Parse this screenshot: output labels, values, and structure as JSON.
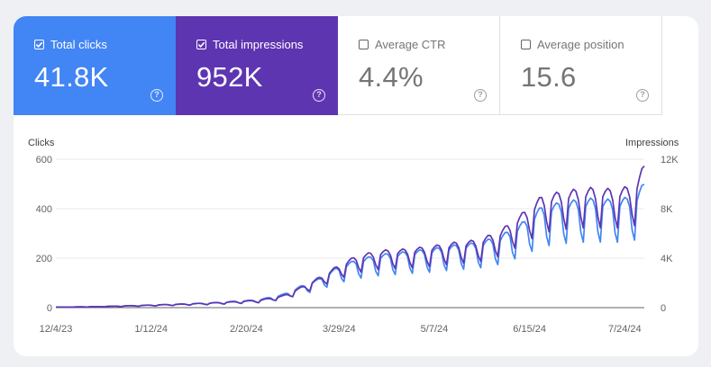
{
  "metrics": [
    {
      "label": "Total clicks",
      "value": "41.8K",
      "checked": true,
      "color": "#4285f4"
    },
    {
      "label": "Total impressions",
      "value": "952K",
      "checked": true,
      "color": "#5e35b1"
    },
    {
      "label": "Average CTR",
      "value": "4.4%",
      "checked": false,
      "color": "#ffffff"
    },
    {
      "label": "Average position",
      "value": "15.6",
      "checked": false,
      "color": "#ffffff"
    }
  ],
  "help_glyph": "?",
  "chart_data": {
    "type": "line",
    "left_axis_title": "Clicks",
    "right_axis_title": "Impressions",
    "x_tick_labels": [
      "12/4/23",
      "1/12/24",
      "2/20/24",
      "3/29/24",
      "5/7/24",
      "6/15/24",
      "7/24/24"
    ],
    "x_range": [
      "2023-12-04",
      "2024-08-01"
    ],
    "left_ticks": [
      "0",
      "200",
      "400",
      "600"
    ],
    "left_range": [
      0,
      600
    ],
    "right_ticks": [
      "0",
      "4K",
      "8K",
      "12K"
    ],
    "right_range": [
      0,
      12000
    ],
    "grid": true,
    "series": [
      {
        "name": "Clicks",
        "axis": "left",
        "color": "#4285f4",
        "points": [
          [
            "2023-12-04",
            2
          ],
          [
            "2023-12-14",
            3
          ],
          [
            "2023-12-25",
            5
          ],
          [
            "2024-01-05",
            8
          ],
          [
            "2024-01-15",
            11
          ],
          [
            "2024-01-25",
            14
          ],
          [
            "2024-02-05",
            18
          ],
          [
            "2024-02-15",
            24
          ],
          [
            "2024-02-25",
            30
          ],
          [
            "2024-03-06",
            50
          ],
          [
            "2024-03-13",
            80
          ],
          [
            "2024-03-20",
            105
          ],
          [
            "2024-03-28",
            150
          ],
          [
            "2024-04-05",
            180
          ],
          [
            "2024-04-15",
            200
          ],
          [
            "2024-04-25",
            210
          ],
          [
            "2024-05-05",
            220
          ],
          [
            "2024-05-15",
            235
          ],
          [
            "2024-05-25",
            245
          ],
          [
            "2024-06-03",
            270
          ],
          [
            "2024-06-12",
            320
          ],
          [
            "2024-06-20",
            380
          ],
          [
            "2024-06-30",
            400
          ],
          [
            "2024-07-10",
            410
          ],
          [
            "2024-07-20",
            405
          ],
          [
            "2024-07-28",
            420
          ],
          [
            "2024-08-01",
            470
          ]
        ],
        "weekly_dip": 0.65
      },
      {
        "name": "Impressions",
        "axis": "right",
        "color": "#5e35b1",
        "points": [
          [
            "2023-12-04",
            40
          ],
          [
            "2023-12-14",
            60
          ],
          [
            "2023-12-25",
            100
          ],
          [
            "2024-01-05",
            150
          ],
          [
            "2024-01-15",
            210
          ],
          [
            "2024-01-25",
            270
          ],
          [
            "2024-02-05",
            350
          ],
          [
            "2024-02-15",
            450
          ],
          [
            "2024-02-25",
            560
          ],
          [
            "2024-03-06",
            900
          ],
          [
            "2024-03-13",
            1500
          ],
          [
            "2024-03-20",
            2200
          ],
          [
            "2024-03-28",
            3100
          ],
          [
            "2024-04-05",
            3900
          ],
          [
            "2024-04-15",
            4300
          ],
          [
            "2024-04-25",
            4400
          ],
          [
            "2024-05-05",
            4600
          ],
          [
            "2024-05-15",
            4900
          ],
          [
            "2024-05-25",
            5100
          ],
          [
            "2024-06-03",
            5800
          ],
          [
            "2024-06-12",
            7100
          ],
          [
            "2024-06-20",
            8400
          ],
          [
            "2024-06-30",
            8800
          ],
          [
            "2024-07-10",
            9000
          ],
          [
            "2024-07-20",
            8900
          ],
          [
            "2024-07-28",
            9200
          ],
          [
            "2024-08-01",
            10800
          ]
        ],
        "weekly_dip": 0.72
      }
    ]
  }
}
